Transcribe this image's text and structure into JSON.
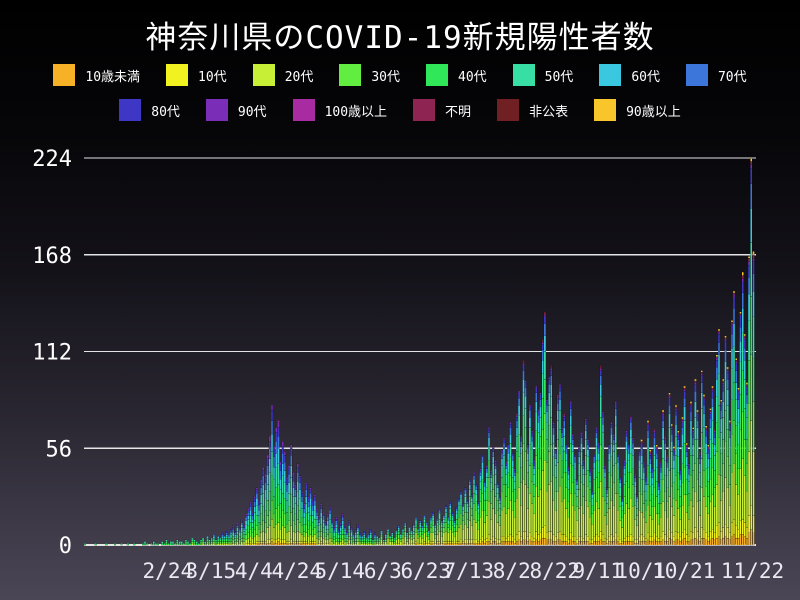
{
  "title": "神奈川県のCOVID-19新規陽性者数",
  "colors": {
    "background_top": "#000000",
    "background_bottom": "#4b4656",
    "grid": "#f0f0f0",
    "text": "#ffffff",
    "x_label_text": "#eae8f0"
  },
  "legend": {
    "rows": [
      [
        {
          "label": "10歳未満",
          "color": "#f6b127"
        },
        {
          "label": "10代",
          "color": "#f2f221"
        },
        {
          "label": "20代",
          "color": "#c6ef36"
        },
        {
          "label": "30代",
          "color": "#62ed41"
        },
        {
          "label": "40代",
          "color": "#30e75a"
        },
        {
          "label": "50代",
          "color": "#37dfa5"
        },
        {
          "label": "60代",
          "color": "#3ac8e0"
        },
        {
          "label": "70代",
          "color": "#3c76da"
        }
      ],
      [
        {
          "label": "80代",
          "color": "#3e37c6"
        },
        {
          "label": "90代",
          "color": "#7a2eb8"
        },
        {
          "label": "100歳以上",
          "color": "#a82ba1"
        },
        {
          "label": "不明",
          "color": "#8e2452"
        },
        {
          "label": "非公表",
          "color": "#702023"
        },
        {
          "label": "90歳以上",
          "color": "#f8c52b"
        }
      ]
    ]
  },
  "chart_data": {
    "type": "bar",
    "subtype": "stacked-daily-bars",
    "title": "神奈川県のCOVID-19新規陽性者数",
    "ylim": [
      0,
      224
    ],
    "y_axis": {
      "ticks": [
        0,
        56,
        112,
        168,
        224
      ],
      "max": 224,
      "grid": true
    },
    "x_axis": {
      "num_days": 312,
      "ticks": [
        {
          "label": "2/24",
          "day": 39
        },
        {
          "label": "3/15",
          "day": 59
        },
        {
          "label": "4/4",
          "day": 79
        },
        {
          "label": "4/24",
          "day": 99
        },
        {
          "label": "5/14",
          "day": 119
        },
        {
          "label": "6/3",
          "day": 139
        },
        {
          "label": "6/23",
          "day": 159
        },
        {
          "label": "7/13",
          "day": 179
        },
        {
          "label": "8/2",
          "day": 199
        },
        {
          "label": "8/22",
          "day": 219
        },
        {
          "label": "9/11",
          "day": 239
        },
        {
          "label": "10/1",
          "day": 259
        },
        {
          "label": "10/21",
          "day": 279
        },
        {
          "label": "11/22",
          "day": 311
        }
      ]
    },
    "categories": [
      "10歳未満",
      "10代",
      "20代",
      "30代",
      "40代",
      "50代",
      "60代",
      "70代",
      "80代",
      "90代",
      "100歳以上",
      "不明",
      "非公表",
      "90歳以上"
    ],
    "category_colors": [
      "#f6b127",
      "#f2f221",
      "#c6ef36",
      "#62ed41",
      "#30e75a",
      "#37dfa5",
      "#3ac8e0",
      "#3c76da",
      "#3e37c6",
      "#7a2eb8",
      "#a82ba1",
      "#8e2452",
      "#702023",
      "#f8c52b"
    ],
    "daily_totals": [
      1,
      0,
      0,
      0,
      0,
      1,
      0,
      0,
      0,
      0,
      1,
      0,
      0,
      0,
      1,
      0,
      0,
      1,
      0,
      0,
      1,
      0,
      0,
      1,
      0,
      0,
      0,
      1,
      2,
      1,
      0,
      1,
      2,
      1,
      1,
      0,
      2,
      1,
      3,
      1,
      2,
      2,
      1,
      3,
      2,
      2,
      1,
      3,
      2,
      1,
      4,
      3,
      2,
      1,
      3,
      4,
      2,
      5,
      3,
      4,
      6,
      3,
      5,
      4,
      7,
      5,
      8,
      6,
      9,
      11,
      8,
      13,
      10,
      15,
      12,
      18,
      21,
      25,
      19,
      28,
      33,
      26,
      38,
      45,
      41,
      52,
      63,
      81,
      57,
      68,
      72,
      48,
      60,
      54,
      39,
      46,
      58,
      42,
      35,
      47,
      40,
      31,
      24,
      36,
      28,
      33,
      26,
      29,
      21,
      17,
      24,
      19,
      14,
      18,
      22,
      15,
      11,
      16,
      9,
      13,
      18,
      12,
      8,
      14,
      10,
      6,
      9,
      12,
      7,
      5,
      8,
      4,
      6,
      9,
      3,
      7,
      5,
      4,
      8,
      3,
      6,
      9,
      5,
      7,
      4,
      8,
      11,
      6,
      9,
      13,
      7,
      10,
      8,
      12,
      16,
      9,
      14,
      11,
      17,
      13,
      8,
      16,
      19,
      12,
      15,
      21,
      14,
      17,
      23,
      16,
      25,
      19,
      14,
      22,
      27,
      31,
      24,
      33,
      26,
      38,
      29,
      42,
      35,
      25,
      44,
      52,
      37,
      46,
      68,
      43,
      57,
      49,
      36,
      28,
      55,
      62,
      48,
      58,
      71,
      53,
      44,
      76,
      89,
      63,
      107,
      95,
      58,
      81,
      66,
      49,
      92,
      78,
      88,
      119,
      135,
      84,
      97,
      104,
      71,
      55,
      87,
      93,
      68,
      76,
      58,
      45,
      83,
      64,
      52,
      38,
      57,
      65,
      49,
      73,
      61,
      44,
      31,
      52,
      68,
      59,
      104,
      77,
      46,
      33,
      58,
      71,
      64,
      83,
      52,
      39,
      27,
      49,
      66,
      58,
      74,
      62,
      41,
      29,
      54,
      61,
      48,
      39,
      72,
      55,
      44,
      67,
      58,
      36,
      49,
      78,
      63,
      52,
      88,
      70,
      57,
      81,
      66,
      43,
      74,
      92,
      59,
      47,
      83,
      68,
      96,
      78,
      54,
      101,
      87,
      69,
      58,
      79,
      92,
      67,
      110,
      125,
      84,
      96,
      121,
      103,
      72,
      130,
      147,
      108,
      91,
      135,
      158,
      122,
      94,
      167,
      224,
      170
    ],
    "age_profiles": [
      {
        "from": 0,
        "to": 136,
        "shares": [
          0.02,
          0.03,
          0.13,
          0.14,
          0.17,
          0.17,
          0.12,
          0.1,
          0.07,
          0.04,
          0.005,
          0.005,
          0.0,
          0.0
        ]
      },
      {
        "from": 137,
        "to": 258,
        "shares": [
          0.03,
          0.05,
          0.28,
          0.2,
          0.15,
          0.12,
          0.07,
          0.05,
          0.03,
          0.01,
          0.0,
          0.005,
          0.005,
          0.0
        ]
      },
      {
        "from": 259,
        "to": 311,
        "shares": [
          0.04,
          0.06,
          0.22,
          0.17,
          0.15,
          0.14,
          0.09,
          0.06,
          0.04,
          0.01,
          0.0,
          0.01,
          0.0,
          0.01
        ]
      }
    ],
    "legend_position": "top",
    "notes_max_value": 224
  }
}
